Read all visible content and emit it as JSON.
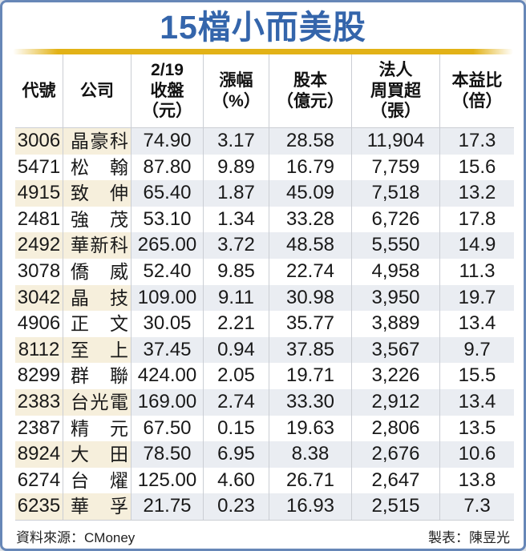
{
  "title": "15檔小而美股",
  "colors": {
    "title_blue": "#3465ab",
    "frame_blue": "#6787b7",
    "divider_gold": "#e2b217",
    "row_cream": "#f6efdc",
    "row_bluegray": "#eaedf2",
    "separator_gray": "#cbced4"
  },
  "chart_data": {
    "type": "table",
    "title": "15檔小而美股",
    "columns": [
      "代號",
      "公司",
      "2/19收盤（元）",
      "漲幅（%）",
      "股本（億元）",
      "法人周買超（張）",
      "本益比（倍）"
    ],
    "header_lines": [
      [
        "代號"
      ],
      [
        "公司"
      ],
      [
        "2/19",
        "收盤",
        "（元）"
      ],
      [
        "漲幅",
        "（%）"
      ],
      [
        "股本",
        "（億元）"
      ],
      [
        "法人",
        "周買超",
        "（張）"
      ],
      [
        "本益比",
        "（倍）"
      ]
    ],
    "rows": [
      {
        "code": "3006",
        "company": "晶豪科",
        "close": "74.90",
        "change": "3.17",
        "capital": "28.58",
        "netbuy": "11,904",
        "pe": "17.3"
      },
      {
        "code": "5471",
        "company": "松翰",
        "close": "87.80",
        "change": "9.89",
        "capital": "16.79",
        "netbuy": "7,759",
        "pe": "15.6"
      },
      {
        "code": "4915",
        "company": "致伸",
        "close": "65.40",
        "change": "1.87",
        "capital": "45.09",
        "netbuy": "7,518",
        "pe": "13.2"
      },
      {
        "code": "2481",
        "company": "強茂",
        "close": "53.10",
        "change": "1.34",
        "capital": "33.28",
        "netbuy": "6,726",
        "pe": "17.8"
      },
      {
        "code": "2492",
        "company": "華新科",
        "close": "265.00",
        "change": "3.72",
        "capital": "48.58",
        "netbuy": "5,550",
        "pe": "14.9"
      },
      {
        "code": "3078",
        "company": "僑威",
        "close": "52.40",
        "change": "9.85",
        "capital": "22.74",
        "netbuy": "4,958",
        "pe": "11.3"
      },
      {
        "code": "3042",
        "company": "晶技",
        "close": "109.00",
        "change": "9.11",
        "capital": "30.98",
        "netbuy": "3,950",
        "pe": "19.7"
      },
      {
        "code": "4906",
        "company": "正文",
        "close": "30.05",
        "change": "2.21",
        "capital": "35.77",
        "netbuy": "3,889",
        "pe": "13.4"
      },
      {
        "code": "8112",
        "company": "至上",
        "close": "37.45",
        "change": "0.94",
        "capital": "37.85",
        "netbuy": "3,567",
        "pe": "9.7"
      },
      {
        "code": "8299",
        "company": "群聯",
        "close": "424.00",
        "change": "2.05",
        "capital": "19.71",
        "netbuy": "3,226",
        "pe": "15.5"
      },
      {
        "code": "2383",
        "company": "台光電",
        "close": "169.00",
        "change": "2.74",
        "capital": "33.30",
        "netbuy": "2,912",
        "pe": "13.4"
      },
      {
        "code": "2387",
        "company": "精元",
        "close": "67.50",
        "change": "0.15",
        "capital": "19.63",
        "netbuy": "2,806",
        "pe": "13.5"
      },
      {
        "code": "8924",
        "company": "大田",
        "close": "78.50",
        "change": "6.95",
        "capital": "8.38",
        "netbuy": "2,676",
        "pe": "10.6"
      },
      {
        "code": "6274",
        "company": "台燿",
        "close": "125.00",
        "change": "4.60",
        "capital": "26.71",
        "netbuy": "2,647",
        "pe": "13.8"
      },
      {
        "code": "6235",
        "company": "華孚",
        "close": "21.75",
        "change": "0.23",
        "capital": "16.93",
        "netbuy": "2,515",
        "pe": "7.3"
      }
    ]
  },
  "footer": {
    "source": "資料來源：CMoney",
    "credit": "製表：陳昱光"
  }
}
